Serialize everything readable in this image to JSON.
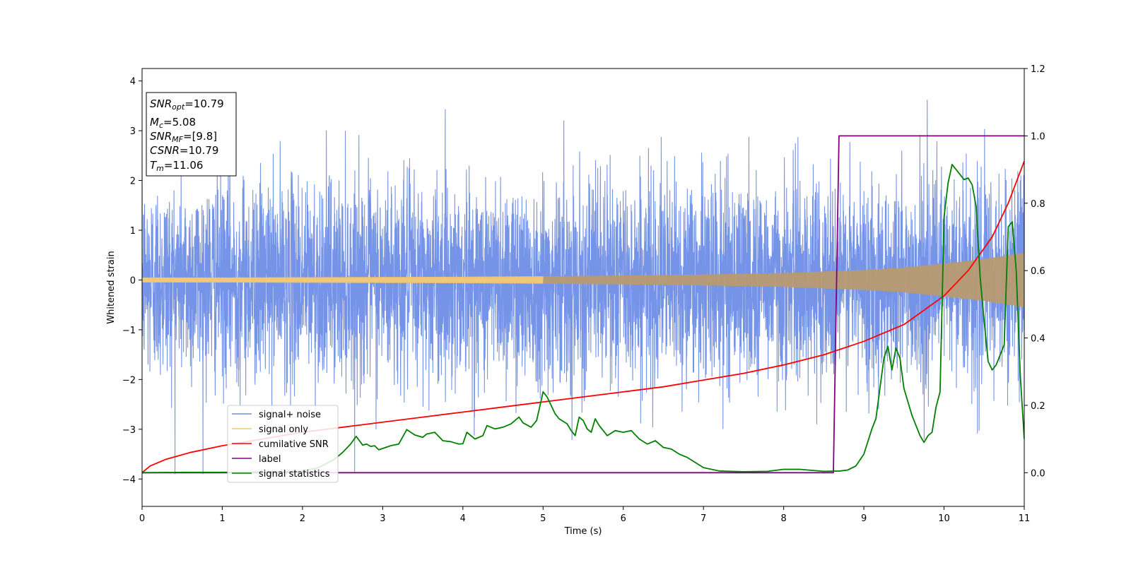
{
  "chart_data": {
    "type": "line",
    "xlabel": "Time (s)",
    "ylabel": "Whitened strain",
    "xlim": [
      0,
      11
    ],
    "ylim_left": [
      -4.55,
      4.25
    ],
    "ylim_right": [
      -0.1,
      1.2
    ],
    "x_ticks": [
      "0",
      "1",
      "2",
      "3",
      "4",
      "5",
      "6",
      "7",
      "8",
      "9",
      "10",
      "11"
    ],
    "y_ticks_left": [
      "−4",
      "−3",
      "−2",
      "−1",
      "0",
      "1",
      "2",
      "3",
      "4"
    ],
    "y_ticks_right": [
      "0.0",
      "0.2",
      "0.4",
      "0.6",
      "0.8",
      "1.0",
      "1.2"
    ],
    "grid": false,
    "legend_position": "lower-left",
    "annotation": {
      "snr_opt": {
        "main": "SNR",
        "sub": "opt",
        "value": "=10.79"
      },
      "mc": {
        "main": "M",
        "sub": "c",
        "value": "=5.08"
      },
      "snr_mf": {
        "main": "SNR",
        "sub": "MF",
        "value": "=[9.8]"
      },
      "csnr": {
        "main": "CSNR",
        "value": "=10.79"
      },
      "tm": {
        "main": "T",
        "sub": "m",
        "value": "=11.06"
      }
    },
    "series": [
      {
        "name": "signal+ noise",
        "color": "#6f8ee6",
        "axis": "left",
        "description_values": {
          "approx_std": 1.0,
          "envelope_min": -4.15,
          "envelope_max": 3.85
        }
      },
      {
        "name": "signal only",
        "color": "#f0c87a",
        "axis": "left",
        "envelope_t": [
          0,
          1,
          2,
          3,
          4,
          5,
          6,
          7,
          8,
          9,
          9.5,
          10,
          10.5,
          11
        ],
        "envelope_amp": [
          0.05,
          0.05,
          0.055,
          0.06,
          0.065,
          0.075,
          0.09,
          0.11,
          0.14,
          0.2,
          0.25,
          0.33,
          0.42,
          0.55
        ]
      },
      {
        "name": "cumilative SNR",
        "color": "#ff0000",
        "axis": "right",
        "x": [
          0,
          0.1,
          0.3,
          0.6,
          1,
          1.5,
          2,
          2.5,
          3,
          3.5,
          4,
          4.5,
          5,
          5.5,
          6,
          6.5,
          7,
          7.5,
          8,
          8.5,
          9,
          9.5,
          10,
          10.3,
          10.6,
          10.8,
          11
        ],
        "values": [
          0.0,
          0.02,
          0.04,
          0.06,
          0.08,
          0.1,
          0.12,
          0.135,
          0.15,
          0.165,
          0.18,
          0.195,
          0.21,
          0.225,
          0.24,
          0.255,
          0.275,
          0.295,
          0.32,
          0.35,
          0.39,
          0.44,
          0.525,
          0.6,
          0.7,
          0.8,
          0.925
        ]
      },
      {
        "name": "label",
        "color": "#800080",
        "axis": "right",
        "x": [
          0,
          8.62,
          8.69,
          11
        ],
        "values": [
          0.0,
          0.0,
          1.0,
          1.0
        ]
      },
      {
        "name": "signal statistics",
        "color": "#008000",
        "axis": "right",
        "x": [
          0,
          0.5,
          1,
          1.5,
          2,
          2.2,
          2.4,
          2.5,
          2.6,
          2.67,
          2.75,
          2.8,
          2.85,
          2.9,
          2.95,
          3.0,
          3.1,
          3.2,
          3.3,
          3.4,
          3.5,
          3.55,
          3.65,
          3.75,
          3.85,
          3.95,
          4.0,
          4.05,
          4.15,
          4.25,
          4.3,
          4.4,
          4.5,
          4.6,
          4.7,
          4.75,
          4.85,
          4.92,
          5.0,
          5.05,
          5.1,
          5.15,
          5.2,
          5.3,
          5.35,
          5.4,
          5.45,
          5.5,
          5.55,
          5.6,
          5.65,
          5.7,
          5.8,
          5.9,
          6.0,
          6.1,
          6.2,
          6.3,
          6.4,
          6.5,
          6.6,
          6.7,
          6.8,
          6.9,
          7.0,
          7.2,
          7.5,
          7.8,
          8.0,
          8.2,
          8.5,
          8.7,
          8.8,
          8.9,
          9.0,
          9.1,
          9.15,
          9.2,
          9.25,
          9.3,
          9.35,
          9.4,
          9.45,
          9.5,
          9.6,
          9.7,
          9.75,
          9.8,
          9.85,
          9.9,
          9.95,
          10.0,
          10.05,
          10.1,
          10.15,
          10.2,
          10.25,
          10.3,
          10.35,
          10.4,
          10.45,
          10.5,
          10.55,
          10.6,
          10.65,
          10.7,
          10.75,
          10.8,
          10.85,
          10.9,
          10.95,
          11.0
        ],
        "values": [
          0.0,
          0.001,
          0.001,
          0.002,
          0.005,
          0.015,
          0.04,
          0.06,
          0.085,
          0.108,
          0.082,
          0.085,
          0.078,
          0.08,
          0.068,
          0.072,
          0.08,
          0.085,
          0.128,
          0.112,
          0.105,
          0.115,
          0.12,
          0.095,
          0.092,
          0.085,
          0.086,
          0.12,
          0.1,
          0.11,
          0.14,
          0.13,
          0.135,
          0.145,
          0.165,
          0.148,
          0.135,
          0.155,
          0.24,
          0.225,
          0.2,
          0.175,
          0.16,
          0.145,
          0.125,
          0.11,
          0.165,
          0.155,
          0.13,
          0.12,
          0.16,
          0.14,
          0.11,
          0.125,
          0.12,
          0.125,
          0.1,
          0.085,
          0.095,
          0.075,
          0.07,
          0.055,
          0.045,
          0.03,
          0.015,
          0.005,
          0.003,
          0.004,
          0.01,
          0.01,
          0.004,
          0.005,
          0.008,
          0.02,
          0.055,
          0.13,
          0.16,
          0.25,
          0.34,
          0.375,
          0.305,
          0.37,
          0.34,
          0.25,
          0.17,
          0.11,
          0.09,
          0.11,
          0.12,
          0.195,
          0.24,
          0.76,
          0.86,
          0.915,
          0.9,
          0.885,
          0.87,
          0.875,
          0.855,
          0.79,
          0.58,
          0.45,
          0.33,
          0.305,
          0.32,
          0.35,
          0.38,
          0.73,
          0.745,
          0.6,
          0.29,
          0.1
        ]
      }
    ]
  }
}
